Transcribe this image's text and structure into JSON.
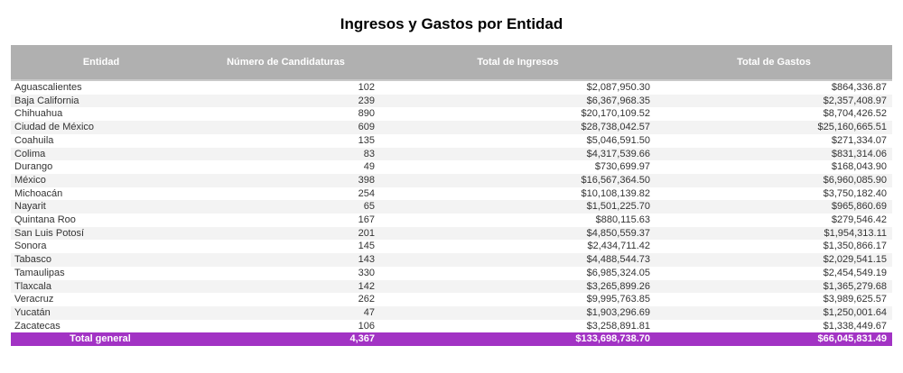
{
  "title": "Ingresos y Gastos por Entidad",
  "colors": {
    "header_bg": "#b0b0b0",
    "header_text": "#ffffff",
    "total_bg": "#a233c4",
    "total_text": "#ffffff",
    "row_alt": "#f3f3f3",
    "row_text": "#333333"
  },
  "chart_data": {
    "type": "table",
    "title": "Ingresos y Gastos por Entidad",
    "columns": [
      "Entidad",
      "Número de Candidaturas",
      "Total de Ingresos",
      "Total de Gastos"
    ],
    "column_keys": [
      "entidad",
      "candidaturas",
      "ingresos",
      "gastos"
    ],
    "rows": [
      [
        "Aguascalientes",
        "102",
        "$2,087,950.30",
        "$864,336.87"
      ],
      [
        "Baja California",
        "239",
        "$6,367,968.35",
        "$2,357,408.97"
      ],
      [
        "Chihuahua",
        "890",
        "$20,170,109.52",
        "$8,704,426.52"
      ],
      [
        "Ciudad de México",
        "609",
        "$28,738,042.57",
        "$25,160,665.51"
      ],
      [
        "Coahuila",
        "135",
        "$5,046,591.50",
        "$271,334.07"
      ],
      [
        "Colima",
        "83",
        "$4,317,539.66",
        "$831,314.06"
      ],
      [
        "Durango",
        "49",
        "$730,699.97",
        "$168,043.90"
      ],
      [
        "México",
        "398",
        "$16,567,364.50",
        "$6,960,085.90"
      ],
      [
        "Michoacán",
        "254",
        "$10,108,139.82",
        "$3,750,182.40"
      ],
      [
        "Nayarit",
        "65",
        "$1,501,225.70",
        "$965,860.69"
      ],
      [
        "Quintana Roo",
        "167",
        "$880,115.63",
        "$279,546.42"
      ],
      [
        "San Luis Potosí",
        "201",
        "$4,850,559.37",
        "$1,954,313.11"
      ],
      [
        "Sonora",
        "145",
        "$2,434,711.42",
        "$1,350,866.17"
      ],
      [
        "Tabasco",
        "143",
        "$4,488,544.73",
        "$2,029,541.15"
      ],
      [
        "Tamaulipas",
        "330",
        "$6,985,324.05",
        "$2,454,549.19"
      ],
      [
        "Tlaxcala",
        "142",
        "$3,265,899.26",
        "$1,365,279.68"
      ],
      [
        "Veracruz",
        "262",
        "$9,995,763.85",
        "$3,989,625.57"
      ],
      [
        "Yucatán",
        "47",
        "$1,903,296.69",
        "$1,250,001.64"
      ],
      [
        "Zacatecas",
        "106",
        "$3,258,891.81",
        "$1,338,449.67"
      ]
    ],
    "total_row": [
      "Total general",
      "4,367",
      "$133,698,738.70",
      "$66,045,831.49"
    ]
  }
}
